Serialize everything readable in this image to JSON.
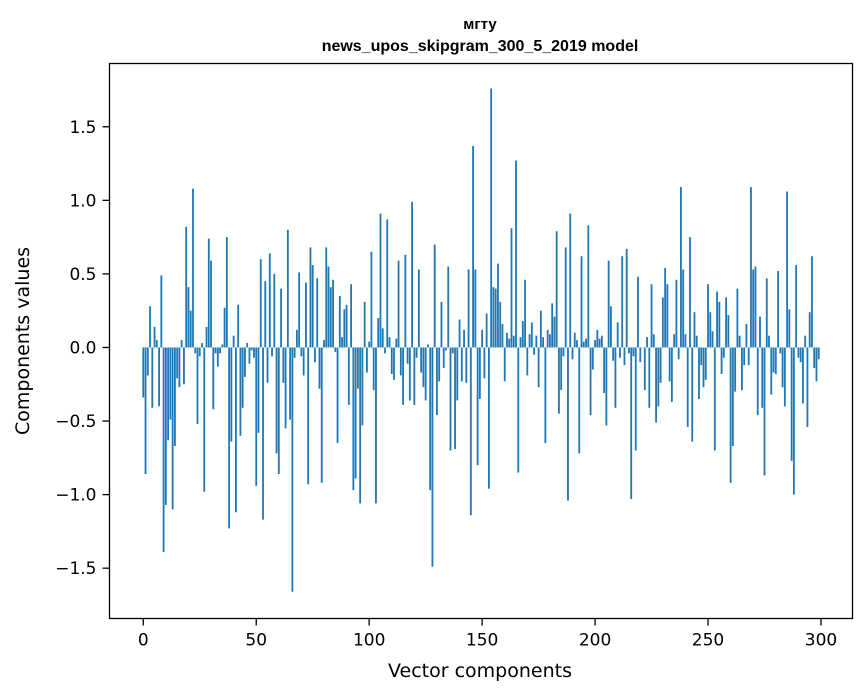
{
  "chart_data": {
    "type": "bar",
    "title_line1": "мгту",
    "title_line2": "news_upos_skipgram_300_5_2019 model",
    "xlabel": "Vector components",
    "ylabel": "Components values",
    "xlim": [
      -14.95,
      313.95
    ],
    "ylim": [
      -1.842,
      1.93
    ],
    "xticks": [
      0,
      50,
      100,
      150,
      200,
      250,
      300
    ],
    "yticks": [
      -1.5,
      -1.0,
      -0.5,
      0.0,
      0.5,
      1.0,
      1.5
    ],
    "ytick_labels": [
      "−1.5",
      "−1.0",
      "−0.5",
      "0.0",
      "0.5",
      "1.0",
      "1.5"
    ],
    "bar_color": "#1f77b4",
    "x": "0..299",
    "values": [
      -0.34,
      -0.86,
      -0.19,
      0.28,
      -0.41,
      0.14,
      0.05,
      -0.4,
      0.49,
      -1.39,
      -1.07,
      -0.63,
      -0.49,
      -1.1,
      -0.67,
      -0.21,
      -0.27,
      0.05,
      -0.25,
      0.82,
      0.41,
      0.25,
      1.08,
      -0.04,
      -0.52,
      -0.06,
      0.03,
      -0.98,
      0.14,
      0.74,
      0.59,
      -0.42,
      -0.04,
      -0.13,
      -0.04,
      0.02,
      0.27,
      0.75,
      -1.23,
      -0.64,
      0.08,
      -1.12,
      0.29,
      -0.6,
      -0.41,
      -0.2,
      0.03,
      -0.11,
      -0.02,
      -0.07,
      -0.94,
      -0.58,
      0.6,
      -1.17,
      0.45,
      -0.24,
      0.64,
      -0.06,
      0.5,
      -0.72,
      -0.86,
      0.4,
      -0.24,
      -0.55,
      0.8,
      -0.49,
      -1.66,
      -0.07,
      0.12,
      0.51,
      -0.06,
      -0.19,
      0.44,
      -0.93,
      0.68,
      0.56,
      -0.1,
      0.47,
      -0.28,
      -0.92,
      0.05,
      0.68,
      0.55,
      0.41,
      0.46,
      -0.03,
      -0.65,
      0.35,
      0.07,
      0.26,
      0.29,
      -0.39,
      0.43,
      -0.97,
      -0.89,
      -0.28,
      -1.06,
      -0.53,
      0.31,
      -0.17,
      0.04,
      0.65,
      -0.29,
      -1.06,
      0.2,
      0.91,
      0.13,
      -0.04,
      0.87,
      0.07,
      -0.18,
      -0.22,
      0.06,
      0.59,
      -0.19,
      -0.39,
      0.63,
      -0.11,
      -0.36,
      0.99,
      -0.39,
      -0.07,
      0.53,
      -0.17,
      -0.27,
      -0.36,
      0.02,
      -0.97,
      -1.49,
      0.7,
      -0.46,
      -0.23,
      0.31,
      -0.14,
      -0.02,
      0.55,
      -0.7,
      -0.04,
      -0.69,
      -0.36,
      0.19,
      -0.23,
      0.12,
      -0.24,
      0.53,
      -1.14,
      1.37,
      0.53,
      -0.8,
      -0.35,
      0.12,
      -0.21,
      0.23,
      -0.96,
      1.76,
      0.41,
      0.4,
      0.57,
      0.31,
      0.16,
      -0.23,
      0.1,
      0.06,
      0.81,
      0.08,
      1.27,
      -0.85,
      0.07,
      0.18,
      0.46,
      -0.19,
      0.09,
      0.17,
      -0.05,
      0.08,
      -0.27,
      0.25,
      0.07,
      -0.65,
      0.12,
      0.09,
      0.3,
      0.21,
      0.79,
      -0.45,
      -0.29,
      -0.06,
      0.68,
      -1.04,
      0.91,
      -0.08,
      0.1,
      0.05,
      -0.72,
      0.62,
      0.04,
      0.06,
      0.83,
      -0.46,
      -0.15,
      0.05,
      0.12,
      0.06,
      0.08,
      -0.31,
      -0.53,
      0.59,
      0.28,
      -0.09,
      -0.41,
      0.17,
      -0.07,
      0.62,
      -0.12,
      0.67,
      -0.04,
      -1.03,
      -0.06,
      -0.7,
      0.48,
      -0.1,
      0.0,
      -0.29,
      0.07,
      -0.41,
      0.43,
      0.09,
      -0.51,
      -0.4,
      -0.24,
      0.34,
      0.54,
      0.43,
      -0.23,
      -0.37,
      0.09,
      0.46,
      -0.08,
      1.09,
      0.53,
      0.09,
      -0.54,
      0.75,
      -0.64,
      0.24,
      0.08,
      -0.35,
      -0.12,
      -0.27,
      -0.22,
      0.43,
      0.24,
      0.11,
      -0.7,
      0.38,
      0.31,
      -0.18,
      -0.07,
      0.34,
      0.22,
      -0.92,
      -0.67,
      -0.3,
      0.4,
      0.08,
      -0.29,
      -0.12,
      0.16,
      -0.12,
      1.09,
      0.53,
      0.55,
      -0.46,
      0.21,
      -0.41,
      -0.87,
      0.47,
      0.08,
      -0.32,
      -0.17,
      -0.18,
      0.52,
      -0.04,
      -0.27,
      -0.4,
      1.06,
      0.26,
      -0.77,
      -1.0,
      0.56,
      -0.07,
      -0.1,
      -0.38,
      0.08,
      -0.54,
      0.24,
      0.62,
      -0.14,
      -0.23,
      -0.08
    ]
  }
}
